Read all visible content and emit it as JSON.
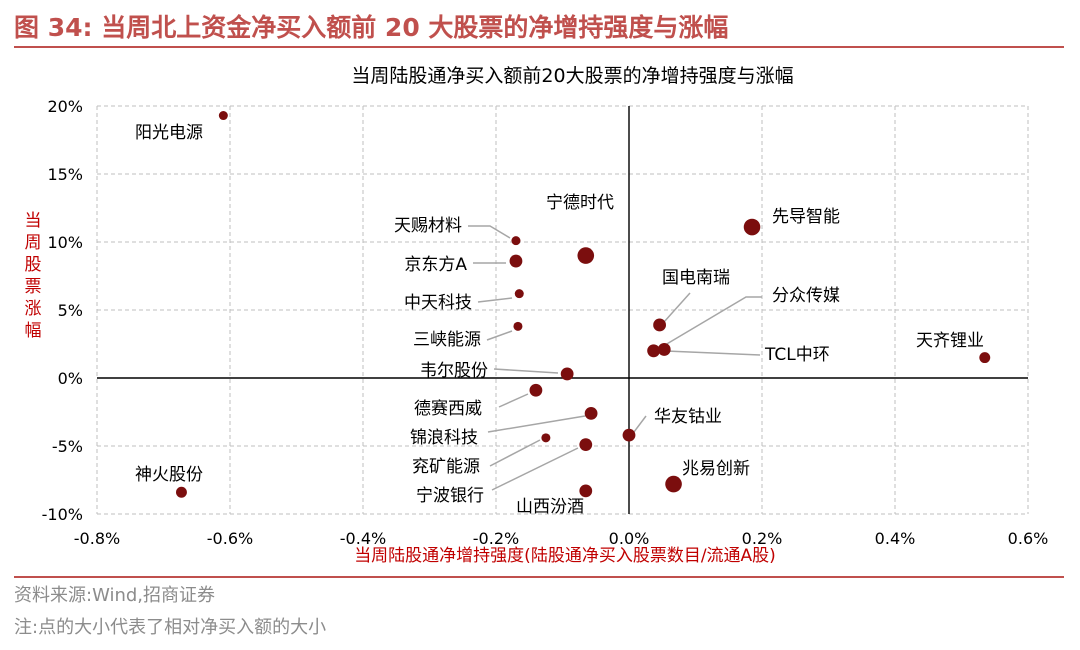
{
  "figure": {
    "label": "图 34:",
    "title": "当周北上资金净买入额前 20 大股票的净增持强度与涨幅",
    "source": "资料来源:Wind,招商证券",
    "footnote": "注:点的大小代表了相对净买入额的大小"
  },
  "colors": {
    "accent": "#c0504d",
    "dot": "#7b0e0e",
    "axis_title": "#c00000",
    "grid": "#bfbfbf",
    "text": "#000000",
    "leader": "#a6a6a6"
  },
  "chart_data": {
    "type": "scatter",
    "title": "当周陆股通净买入额前20大股票的净增持强度与涨幅",
    "xlabel": "当周陆股通净增持强度(陆股通净买入股票数目/流通A股)",
    "ylabel": "当周股票涨幅",
    "xlim": [
      -0.8,
      0.6
    ],
    "ylim": [
      -10,
      20
    ],
    "x_ticks": [
      -0.8,
      -0.6,
      -0.4,
      -0.2,
      0.0,
      0.2,
      0.4,
      0.6
    ],
    "x_tick_labels": [
      "-0.8%",
      "-0.6%",
      "-0.4%",
      "-0.2%",
      "0.0%",
      "0.2%",
      "0.4%",
      "0.6%"
    ],
    "y_ticks": [
      -10,
      -5,
      0,
      5,
      10,
      15,
      20
    ],
    "y_tick_labels": [
      "-10%",
      "-5%",
      "0%",
      "5%",
      "10%",
      "15%",
      "20%"
    ],
    "grid": true,
    "x_unit": "%",
    "y_unit": "%",
    "size_meaning": "relative net buy amount",
    "points": [
      {
        "name": "阳光电源",
        "x": -0.61,
        "y": 19.3,
        "size": 1
      },
      {
        "name": "天赐材料",
        "x": -0.17,
        "y": 10.1,
        "size": 1
      },
      {
        "name": "宁德时代",
        "x": -0.065,
        "y": 9.0,
        "size": 3
      },
      {
        "name": "京东方A",
        "x": -0.17,
        "y": 8.6,
        "size": 2
      },
      {
        "name": "中天科技",
        "x": -0.165,
        "y": 6.2,
        "size": 1
      },
      {
        "name": "三峡能源",
        "x": -0.167,
        "y": 3.8,
        "size": 1
      },
      {
        "name": "韦尔股份",
        "x": -0.093,
        "y": 0.3,
        "size": 2
      },
      {
        "name": "德赛西威",
        "x": -0.14,
        "y": -0.9,
        "size": 2
      },
      {
        "name": "锦浪科技",
        "x": -0.057,
        "y": -2.6,
        "size": 2
      },
      {
        "name": "兖矿能源",
        "x": -0.125,
        "y": -4.4,
        "size": 1
      },
      {
        "name": "宁波银行",
        "x": -0.065,
        "y": -4.9,
        "size": 2
      },
      {
        "name": "山西汾酒",
        "x": -0.065,
        "y": -8.3,
        "size": 2
      },
      {
        "name": "神火股份",
        "x": -0.673,
        "y": -8.4,
        "size": 1.5
      },
      {
        "name": "华友钴业",
        "x": 0.0,
        "y": -4.2,
        "size": 2
      },
      {
        "name": "兆易创新",
        "x": 0.067,
        "y": -7.8,
        "size": 3
      },
      {
        "name": "先导智能",
        "x": 0.185,
        "y": 11.1,
        "size": 3
      },
      {
        "name": "国电南瑞",
        "x": 0.046,
        "y": 3.9,
        "size": 2
      },
      {
        "name": "分众传媒",
        "x": 0.053,
        "y": 2.1,
        "size": 2
      },
      {
        "name": "TCL中环",
        "x": 0.037,
        "y": 2.0,
        "size": 2
      },
      {
        "name": "天齐锂业",
        "x": 0.535,
        "y": 1.5,
        "size": 1.5
      }
    ]
  }
}
